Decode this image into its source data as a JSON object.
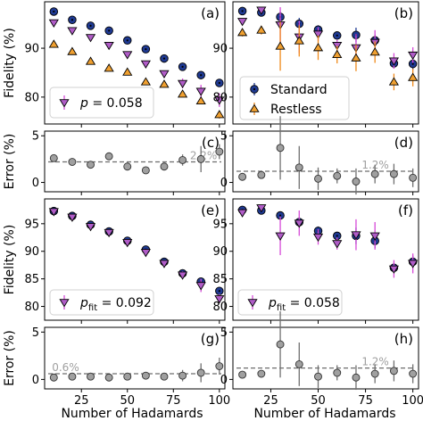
{
  "x_axis_label": "Number of Hadamards",
  "chart_data": [
    {
      "id": "a",
      "type": "scatter",
      "tag": "(a)",
      "ylabel": "Fidelity (%)",
      "ylim": [
        74.5,
        99.5
      ],
      "yticks": [
        80,
        90
      ],
      "xlim": [
        5,
        103
      ],
      "xticks": [
        25,
        50,
        75,
        100
      ],
      "show_xtick_labels": false,
      "series": [
        {
          "name": "Standard",
          "marker": "circle-dot",
          "color": "#1f3a93",
          "x": [
            10,
            20,
            30,
            40,
            50,
            60,
            70,
            80,
            90,
            100
          ],
          "y": [
            97.5,
            95.8,
            94.6,
            93.6,
            91.6,
            89.8,
            87.9,
            86.2,
            84.5,
            82.9
          ],
          "err": [
            0.3,
            0.3,
            0.3,
            0.3,
            0.3,
            0.3,
            0.3,
            0.3,
            0.4,
            0.5
          ]
        },
        {
          "name": "",
          "marker": "triangle-down",
          "color": "#b05cc7",
          "x": [
            10,
            20,
            30,
            40,
            50,
            60,
            70,
            80,
            90,
            100
          ],
          "y": [
            95.2,
            93.6,
            92.2,
            90.6,
            88.7,
            86.8,
            84.8,
            82.8,
            81.2,
            79.4
          ],
          "err": [
            0.4,
            0.4,
            0.4,
            0.4,
            0.4,
            0.5,
            0.5,
            1.0,
            1.3,
            1.4
          ]
        },
        {
          "name": "",
          "marker": "triangle-up",
          "color": "#f0a030",
          "x": [
            10,
            20,
            30,
            40,
            50,
            60,
            70,
            80,
            90,
            100
          ],
          "y": [
            90.8,
            89.3,
            87.3,
            85.9,
            85.1,
            83.1,
            82.6,
            80.6,
            79.2,
            76.4
          ],
          "err": [
            0.4,
            0.4,
            0.4,
            0.4,
            0.4,
            0.5,
            0.5,
            0.6,
            0.6,
            0.8
          ]
        }
      ],
      "legend": {
        "marker": "triangle-down",
        "color": "#b05cc7",
        "symbol": "p",
        "value": " = 0.058"
      }
    },
    {
      "id": "b",
      "type": "scatter",
      "tag": "(b)",
      "ylabel": "",
      "ylim": [
        74.5,
        99.5
      ],
      "yticks": [
        80,
        90
      ],
      "xlim": [
        5,
        103
      ],
      "xticks": [
        25,
        50,
        75,
        100
      ],
      "show_xtick_labels": false,
      "series": [
        {
          "name": "Standard",
          "marker": "circle-dot",
          "color": "#1f3a93",
          "x": [
            10,
            20,
            30,
            40,
            50,
            60,
            70,
            80,
            90,
            100
          ],
          "y": [
            97.6,
            97.3,
            96.4,
            95.0,
            93.8,
            92.6,
            92.7,
            91.6,
            86.9,
            86.8
          ],
          "err": [
            0.3,
            0.3,
            1.1,
            1.2,
            0.9,
            0.7,
            1.5,
            1.2,
            1.0,
            1.2
          ]
        },
        {
          "name": "",
          "marker": "triangle-down",
          "color": "#b05cc7",
          "x": [
            10,
            20,
            30,
            40,
            50,
            60,
            70,
            80,
            90,
            100
          ],
          "y": [
            95.5,
            97.8,
            94.8,
            92.3,
            92.9,
            90.6,
            90.1,
            91.2,
            87.4,
            88.6
          ],
          "err": [
            0.4,
            0.4,
            3.6,
            3.3,
            1.4,
            1.1,
            2.8,
            2.5,
            1.6,
            1.6
          ]
        },
        {
          "name": "",
          "marker": "triangle-up",
          "color": "#f0a030",
          "x": [
            10,
            20,
            30,
            40,
            50,
            60,
            70,
            80,
            90,
            100
          ],
          "y": [
            93.2,
            93.7,
            90.4,
            91.5,
            90.1,
            88.7,
            88.0,
            89.2,
            83.1,
            84.0
          ],
          "err": [
            0.8,
            0.9,
            5.0,
            3.2,
            2.5,
            1.8,
            2.7,
            2.2,
            1.7,
            1.8
          ]
        }
      ],
      "legend": {
        "entries": [
          {
            "label": "Standard",
            "marker": "circle-dot",
            "color": "#1f3a93"
          },
          {
            "label": "Restless",
            "marker": "triangle-up",
            "color": "#f0a030"
          }
        ]
      }
    },
    {
      "id": "c",
      "type": "scatter",
      "tag": "(c)",
      "ylabel": "Error (%)",
      "ylim": [
        -1,
        5.5
      ],
      "yticks": [
        0,
        5
      ],
      "xlim": [
        5,
        103
      ],
      "xticks": [
        25,
        50,
        75,
        100
      ],
      "show_xtick_labels": false,
      "series": [
        {
          "name": "",
          "marker": "circle",
          "color": "#a0a0a0",
          "x": [
            10,
            20,
            30,
            40,
            50,
            60,
            70,
            80,
            90,
            100
          ],
          "y": [
            2.6,
            2.2,
            1.9,
            2.8,
            1.7,
            1.3,
            1.7,
            2.4,
            2.5,
            3.3
          ],
          "err": [
            0.3,
            0.3,
            0.3,
            0.3,
            0.3,
            0.3,
            0.4,
            0.6,
            1.4,
            0.8
          ]
        }
      ],
      "reference_line": {
        "value": 2.2,
        "label": "2.2%",
        "label_x": 84
      }
    },
    {
      "id": "d",
      "type": "scatter",
      "tag": "(d)",
      "ylabel": "",
      "ylim": [
        -1,
        5.5
      ],
      "yticks": [
        0,
        5
      ],
      "xlim": [
        5,
        103
      ],
      "xticks": [
        25,
        50,
        75,
        100
      ],
      "show_xtick_labels": false,
      "series": [
        {
          "name": "",
          "marker": "circle",
          "color": "#a0a0a0",
          "x": [
            10,
            20,
            30,
            40,
            50,
            60,
            70,
            80,
            90,
            100
          ],
          "y": [
            0.6,
            0.8,
            3.7,
            1.6,
            0.4,
            0.7,
            0.1,
            0.9,
            0.9,
            0.5
          ],
          "err": [
            0.3,
            0.3,
            3.4,
            2.3,
            1.2,
            0.8,
            1.4,
            1.0,
            1.1,
            1.0
          ]
        }
      ],
      "reference_line": {
        "value": 1.2,
        "label": "1.2%",
        "label_x": 73
      }
    },
    {
      "id": "e",
      "type": "scatter",
      "tag": "(e)",
      "ylabel": "Fidelity (%)",
      "ylim": [
        77.5,
        99.5
      ],
      "yticks": [
        80,
        85,
        90,
        95
      ],
      "xlim": [
        5,
        103
      ],
      "xticks": [
        25,
        50,
        75,
        100
      ],
      "show_xtick_labels": false,
      "series": [
        {
          "name": "",
          "marker": "circle-dot",
          "color": "#1f3a93",
          "x": [
            10,
            20,
            30,
            40,
            50,
            60,
            70,
            80,
            90,
            100
          ],
          "y": [
            97.3,
            96.4,
            94.8,
            93.6,
            91.9,
            90.3,
            88.1,
            86.0,
            84.5,
            82.8
          ],
          "err": [
            0.3,
            0.3,
            0.3,
            0.3,
            0.3,
            0.3,
            0.3,
            0.3,
            0.4,
            0.4
          ]
        },
        {
          "name": "",
          "marker": "triangle-down",
          "color": "#b05cc7",
          "x": [
            10,
            20,
            30,
            40,
            50,
            60,
            70,
            80,
            90,
            100
          ],
          "y": [
            97.2,
            96.2,
            94.5,
            93.4,
            91.6,
            89.8,
            87.8,
            85.7,
            83.8,
            81.4
          ],
          "err": [
            0.3,
            0.4,
            0.4,
            0.4,
            0.4,
            0.4,
            0.5,
            0.7,
            1.2,
            0.8
          ]
        }
      ],
      "legend": {
        "marker": "triangle-down",
        "color": "#b05cc7",
        "symbol": "p",
        "subscript": "fit",
        "value": " = 0.092"
      }
    },
    {
      "id": "f",
      "type": "scatter",
      "tag": "(f)",
      "ylabel": "",
      "ylim": [
        77.5,
        99.5
      ],
      "yticks": [
        80,
        85,
        90,
        95
      ],
      "xlim": [
        5,
        103
      ],
      "xticks": [
        25,
        50,
        75,
        100
      ],
      "show_xtick_labels": false,
      "series": [
        {
          "name": "",
          "marker": "circle-dot",
          "color": "#1f3a93",
          "x": [
            10,
            20,
            30,
            40,
            50,
            60,
            70,
            80,
            90,
            100
          ],
          "y": [
            97.5,
            97.4,
            96.5,
            95.3,
            93.7,
            92.8,
            92.8,
            91.9,
            87.0,
            88.1
          ],
          "err": [
            0.3,
            0.3,
            0.7,
            0.8,
            0.8,
            0.7,
            1.5,
            1.3,
            0.9,
            1.1
          ]
        },
        {
          "name": "",
          "marker": "triangle-down",
          "color": "#b05cc7",
          "x": [
            10,
            20,
            30,
            40,
            50,
            60,
            70,
            80,
            90,
            100
          ],
          "y": [
            97.0,
            97.9,
            92.8,
            95.1,
            92.6,
            91.4,
            93.0,
            92.8,
            86.8,
            87.8
          ],
          "err": [
            0.4,
            0.4,
            3.5,
            2.3,
            1.4,
            1.1,
            2.8,
            2.5,
            1.6,
            1.8
          ]
        }
      ],
      "legend": {
        "marker": "triangle-down",
        "color": "#b05cc7",
        "symbol": "p",
        "subscript": "fit",
        "value": " = 0.058"
      }
    },
    {
      "id": "g",
      "type": "scatter",
      "tag": "(g)",
      "ylabel": "Error (%)",
      "ylim": [
        -1,
        5.5
      ],
      "yticks": [
        0,
        5
      ],
      "xlim": [
        5,
        103
      ],
      "xticks": [
        25,
        50,
        75,
        100
      ],
      "show_xtick_labels": true,
      "series": [
        {
          "name": "",
          "marker": "circle",
          "color": "#a0a0a0",
          "x": [
            10,
            20,
            30,
            40,
            50,
            60,
            70,
            80,
            90,
            100
          ],
          "y": [
            0.2,
            0.3,
            0.3,
            0.2,
            0.3,
            0.4,
            0.3,
            0.4,
            0.7,
            1.4
          ],
          "err": [
            0.2,
            0.2,
            0.2,
            0.2,
            0.2,
            0.2,
            0.3,
            0.6,
            1.0,
            0.9
          ]
        }
      ],
      "reference_line": {
        "value": 0.6,
        "label": "0.6%",
        "label_x": 9
      }
    },
    {
      "id": "h",
      "type": "scatter",
      "tag": "(h)",
      "ylabel": "",
      "ylim": [
        -1,
        5.5
      ],
      "yticks": [
        0,
        5
      ],
      "xlim": [
        5,
        103
      ],
      "xticks": [
        25,
        50,
        75,
        100
      ],
      "show_xtick_labels": true,
      "series": [
        {
          "name": "",
          "marker": "circle",
          "color": "#a0a0a0",
          "x": [
            10,
            20,
            30,
            40,
            50,
            60,
            70,
            80,
            90,
            100
          ],
          "y": [
            0.5,
            0.6,
            3.7,
            1.6,
            0.3,
            0.7,
            0.2,
            0.6,
            0.9,
            0.6
          ],
          "err": [
            0.3,
            0.3,
            3.5,
            2.3,
            1.2,
            0.8,
            1.3,
            1.0,
            1.1,
            1.0
          ]
        }
      ],
      "reference_line": {
        "value": 1.2,
        "label": "1.2%",
        "label_x": 73
      }
    }
  ]
}
